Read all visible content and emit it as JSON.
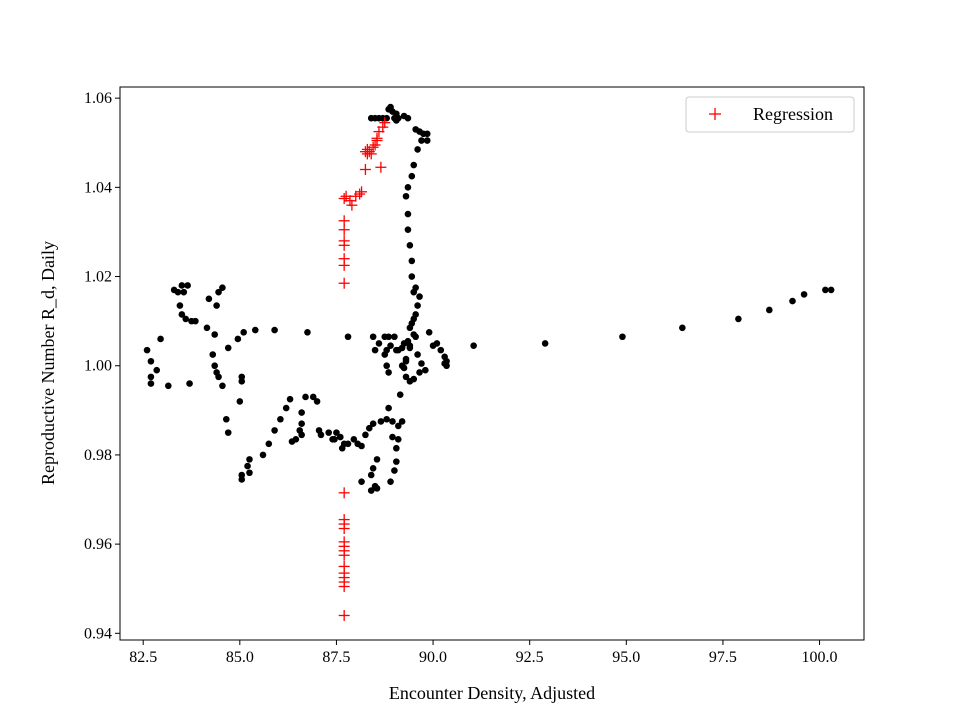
{
  "chart_data": {
    "type": "scatter",
    "title": "",
    "xlabel": "Encounter Density, Adjusted",
    "ylabel": "Reproductive Number R_d, Daily",
    "xlim": [
      81.9,
      101.15
    ],
    "ylim": [
      0.9385,
      1.0625
    ],
    "xticks": [
      82.5,
      85.0,
      87.5,
      90.0,
      92.5,
      95.0,
      97.5,
      100.0
    ],
    "xtick_labels": [
      "82.5",
      "85.0",
      "87.5",
      "90.0",
      "92.5",
      "95.0",
      "97.5",
      "100.0"
    ],
    "yticks": [
      0.94,
      0.96,
      0.98,
      1.0,
      1.02,
      1.04,
      1.06
    ],
    "ytick_labels": [
      "0.94",
      "0.96",
      "0.98",
      "1.00",
      "1.02",
      "1.04",
      "1.06"
    ],
    "grid": false,
    "legend_position": "top-right",
    "series": [
      {
        "name": "",
        "marker": "dot",
        "color": "#000000",
        "points": [
          [
            82.6,
            1.0035
          ],
          [
            82.7,
            1.001
          ],
          [
            82.7,
            0.9975
          ],
          [
            82.7,
            0.996
          ],
          [
            82.85,
            0.999
          ],
          [
            82.95,
            1.006
          ],
          [
            83.15,
            0.9955
          ],
          [
            83.3,
            1.017
          ],
          [
            83.4,
            1.0165
          ],
          [
            83.45,
            1.0135
          ],
          [
            83.5,
            1.018
          ],
          [
            83.5,
            1.0115
          ],
          [
            83.6,
            1.0105
          ],
          [
            83.65,
            1.018
          ],
          [
            83.55,
            1.0165
          ],
          [
            83.75,
            1.01
          ],
          [
            83.85,
            1.01
          ],
          [
            83.7,
            0.996
          ],
          [
            84.2,
            1.015
          ],
          [
            84.15,
            1.0085
          ],
          [
            84.35,
            1.007
          ],
          [
            84.3,
            1.0025
          ],
          [
            84.4,
            1.0135
          ],
          [
            84.45,
            1.0165
          ],
          [
            84.55,
            1.0175
          ],
          [
            84.35,
            1.0
          ],
          [
            84.4,
            0.9985
          ],
          [
            84.45,
            0.9975
          ],
          [
            84.55,
            0.9955
          ],
          [
            84.7,
            1.004
          ],
          [
            84.65,
            0.988
          ],
          [
            84.7,
            0.985
          ],
          [
            85.0,
            0.992
          ],
          [
            84.95,
            1.006
          ],
          [
            85.1,
            1.0075
          ],
          [
            85.05,
            0.9975
          ],
          [
            85.05,
            0.9965
          ],
          [
            85.05,
            0.9755
          ],
          [
            85.05,
            0.9745
          ],
          [
            85.25,
            0.979
          ],
          [
            85.2,
            0.9775
          ],
          [
            85.25,
            0.976
          ],
          [
            85.4,
            1.008
          ],
          [
            85.6,
            0.98
          ],
          [
            85.75,
            0.9825
          ],
          [
            85.9,
            1.008
          ],
          [
            85.9,
            0.9855
          ],
          [
            86.05,
            0.988
          ],
          [
            86.2,
            0.9905
          ],
          [
            86.3,
            0.9925
          ],
          [
            86.35,
            0.983
          ],
          [
            86.45,
            0.9835
          ],
          [
            86.55,
            0.9855
          ],
          [
            86.6,
            0.9895
          ],
          [
            86.6,
            0.987
          ],
          [
            86.6,
            0.9845
          ],
          [
            86.7,
            0.993
          ],
          [
            86.75,
            1.0075
          ],
          [
            86.9,
            0.993
          ],
          [
            87.0,
            0.992
          ],
          [
            87.05,
            0.9855
          ],
          [
            87.1,
            0.9845
          ],
          [
            87.3,
            0.985
          ],
          [
            87.4,
            0.9835
          ],
          [
            87.45,
            0.9835
          ],
          [
            87.5,
            0.985
          ],
          [
            87.6,
            0.984
          ],
          [
            87.65,
            0.9815
          ],
          [
            87.7,
            0.9825
          ],
          [
            87.8,
            1.0065
          ],
          [
            87.8,
            0.9825
          ],
          [
            87.95,
            0.9835
          ],
          [
            88.05,
            0.9825
          ],
          [
            88.15,
            0.982
          ],
          [
            88.25,
            0.9845
          ],
          [
            88.35,
            0.986
          ],
          [
            88.45,
            0.987
          ],
          [
            88.15,
            0.974
          ],
          [
            88.4,
            0.972
          ],
          [
            88.5,
            0.973
          ],
          [
            88.55,
            0.9725
          ],
          [
            88.45,
            0.977
          ],
          [
            88.55,
            0.979
          ],
          [
            88.4,
            0.9755
          ],
          [
            88.65,
            0.9875
          ],
          [
            88.8,
            0.988
          ],
          [
            88.85,
            0.9905
          ],
          [
            88.95,
            0.9875
          ],
          [
            88.95,
            0.984
          ],
          [
            89.1,
            0.9865
          ],
          [
            89.05,
            0.9815
          ],
          [
            89.05,
            0.9785
          ],
          [
            89.0,
            0.9765
          ],
          [
            88.9,
            0.974
          ],
          [
            89.1,
            0.9835
          ],
          [
            89.2,
            0.9875
          ],
          [
            89.15,
            0.9935
          ],
          [
            88.45,
            1.0065
          ],
          [
            88.5,
            1.0035
          ],
          [
            88.6,
            1.005
          ],
          [
            88.75,
            1.0065
          ],
          [
            88.8,
            1.0035
          ],
          [
            88.85,
            1.0065
          ],
          [
            88.9,
            1.0045
          ],
          [
            89.0,
            1.0065
          ],
          [
            89.05,
            1.0035
          ],
          [
            89.1,
            1.0035
          ],
          [
            89.2,
            1.004
          ],
          [
            89.25,
            1.005
          ],
          [
            89.35,
            1.0055
          ],
          [
            89.4,
            1.004
          ],
          [
            89.3,
            1.001
          ],
          [
            89.2,
            1.0
          ],
          [
            89.25,
            0.9995
          ],
          [
            89.3,
            1.0015
          ],
          [
            89.4,
            1.0085
          ],
          [
            89.4,
            1.0045
          ],
          [
            89.45,
            1.0095
          ],
          [
            89.5,
            1.0105
          ],
          [
            89.55,
            1.0115
          ],
          [
            89.6,
            1.0135
          ],
          [
            89.65,
            1.0155
          ],
          [
            89.5,
            1.007
          ],
          [
            89.55,
            1.0065
          ],
          [
            89.6,
            1.0025
          ],
          [
            89.7,
            1.0005
          ],
          [
            89.65,
            0.9985
          ],
          [
            89.8,
            0.999
          ],
          [
            89.5,
            0.997
          ],
          [
            89.4,
            0.9965
          ],
          [
            89.3,
            0.9975
          ],
          [
            88.85,
            0.9985
          ],
          [
            88.75,
            1.0025
          ],
          [
            88.8,
            1.0
          ],
          [
            89.9,
            1.0075
          ],
          [
            90.0,
            1.0045
          ],
          [
            90.1,
            1.005
          ],
          [
            90.2,
            1.0035
          ],
          [
            90.3,
            1.002
          ],
          [
            90.35,
            1.001
          ],
          [
            90.3,
            1.0005
          ],
          [
            90.35,
            1.0
          ],
          [
            91.05,
            1.0045
          ],
          [
            92.9,
            1.005
          ],
          [
            94.9,
            1.0065
          ],
          [
            96.45,
            1.0085
          ],
          [
            97.9,
            1.0105
          ],
          [
            98.7,
            1.0125
          ],
          [
            99.3,
            1.0145
          ],
          [
            99.6,
            1.016
          ],
          [
            100.15,
            1.017
          ],
          [
            100.3,
            1.017
          ],
          [
            89.5,
            1.0165
          ],
          [
            89.55,
            1.0175
          ],
          [
            89.45,
            1.02
          ],
          [
            89.45,
            1.0235
          ],
          [
            89.4,
            1.027
          ],
          [
            89.35,
            1.0305
          ],
          [
            89.35,
            1.034
          ],
          [
            89.3,
            1.038
          ],
          [
            89.35,
            1.04
          ],
          [
            89.45,
            1.0425
          ],
          [
            89.5,
            1.045
          ],
          [
            89.6,
            1.0485
          ],
          [
            89.7,
            1.0505
          ],
          [
            89.85,
            1.052
          ],
          [
            89.85,
            1.0505
          ],
          [
            89.75,
            1.052
          ],
          [
            89.65,
            1.0525
          ],
          [
            89.55,
            1.053
          ],
          [
            89.35,
            1.0555
          ],
          [
            89.25,
            1.056
          ],
          [
            89.1,
            1.0555
          ],
          [
            89.0,
            1.0555
          ],
          [
            88.95,
            1.057
          ],
          [
            88.9,
            1.058
          ],
          [
            88.85,
            1.0575
          ],
          [
            89.05,
            1.0565
          ],
          [
            89.05,
            1.055
          ],
          [
            88.8,
            1.0555
          ],
          [
            88.7,
            1.0555
          ],
          [
            88.6,
            1.0555
          ],
          [
            88.5,
            1.0555
          ],
          [
            88.4,
            1.0555
          ]
        ]
      },
      {
        "name": "Regression",
        "marker": "plus",
        "color": "#ff0000",
        "points": [
          [
            87.7,
            0.944
          ],
          [
            87.7,
            0.9505
          ],
          [
            87.7,
            0.9515
          ],
          [
            87.7,
            0.9525
          ],
          [
            87.7,
            0.9535
          ],
          [
            87.7,
            0.955
          ],
          [
            87.7,
            0.9575
          ],
          [
            87.7,
            0.9585
          ],
          [
            87.7,
            0.9595
          ],
          [
            87.7,
            0.9605
          ],
          [
            87.7,
            0.9635
          ],
          [
            87.7,
            0.9645
          ],
          [
            87.7,
            0.9655
          ],
          [
            87.7,
            0.9715
          ],
          [
            87.7,
            1.0185
          ],
          [
            87.7,
            1.0225
          ],
          [
            87.7,
            1.024
          ],
          [
            87.7,
            1.027
          ],
          [
            87.7,
            1.028
          ],
          [
            87.7,
            1.0305
          ],
          [
            87.7,
            1.0325
          ],
          [
            87.7,
            1.0375
          ],
          [
            87.75,
            1.038
          ],
          [
            87.85,
            1.037
          ],
          [
            87.9,
            1.036
          ],
          [
            88.0,
            1.038
          ],
          [
            88.1,
            1.0385
          ],
          [
            88.15,
            1.039
          ],
          [
            88.25,
            1.044
          ],
          [
            88.65,
            1.0445
          ],
          [
            88.25,
            1.048
          ],
          [
            88.3,
            1.0485
          ],
          [
            88.35,
            1.048
          ],
          [
            88.4,
            1.0475
          ],
          [
            88.45,
            1.049
          ],
          [
            88.5,
            1.0495
          ],
          [
            88.55,
            1.051
          ],
          [
            88.6,
            1.0525
          ],
          [
            88.7,
            1.0535
          ],
          [
            88.75,
            1.0545
          ],
          [
            88.55,
            1.0505
          ],
          [
            88.3,
            1.0475
          ]
        ]
      }
    ]
  }
}
